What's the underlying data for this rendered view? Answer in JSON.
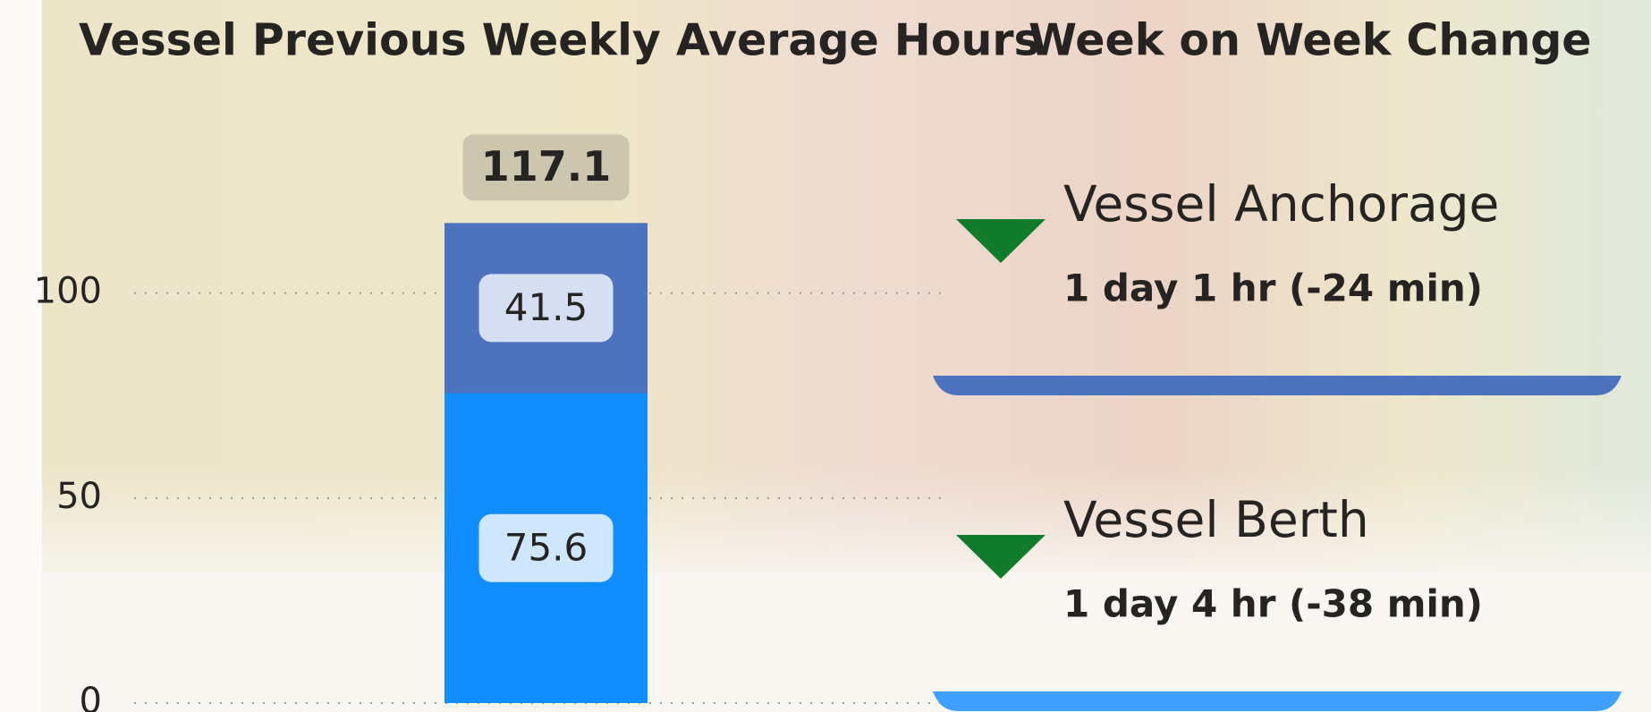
{
  "chart_data": {
    "type": "stacked_bar",
    "title": "Vessel Previous Weekly Average Hours",
    "categories": [
      null
    ],
    "series": [
      {
        "color": "#118dff",
        "values": [
          75.6
        ]
      },
      {
        "color": "#4e73be",
        "values": [
          41.5
        ]
      }
    ],
    "total": [
      117.1
    ],
    "ylim": [
      0,
      120
    ],
    "yticks": [
      0,
      50,
      100
    ],
    "grid": true
  },
  "kpi": {
    "title": "Week on Week Change",
    "items": [
      {
        "label": "Vessel Anchorage",
        "value": "1 day 1 hr (-24 min)",
        "color": "#4e73be"
      },
      {
        "label": "Vessel Berth",
        "value": "1 day 4 hr (-38 min)",
        "color": "#3fa0ff"
      }
    ]
  }
}
